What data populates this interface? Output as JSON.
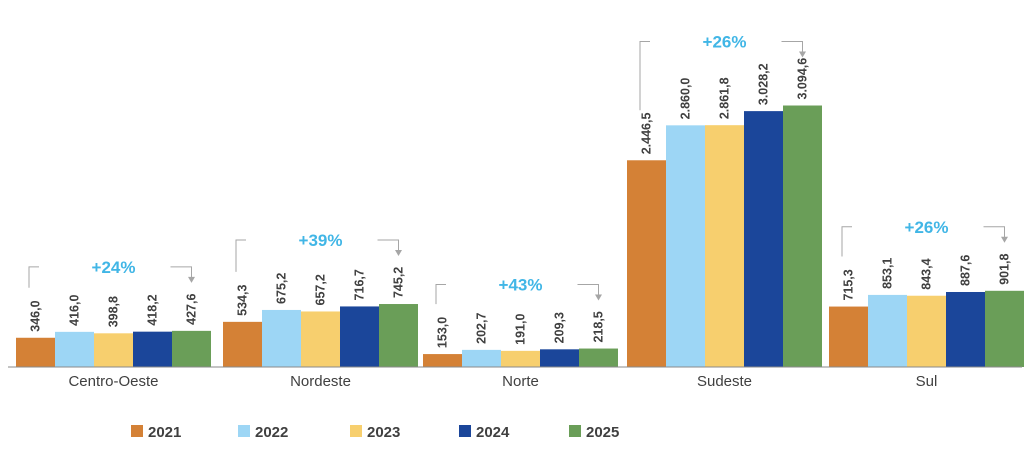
{
  "chart_data": {
    "type": "bar",
    "categories": [
      "Centro-Oeste",
      "Nordeste",
      "Norte",
      "Sudeste",
      "Sul"
    ],
    "series": [
      {
        "name": "2021",
        "color": "#D48136",
        "values": [
          346.0,
          534.3,
          153.0,
          2446.5,
          715.3
        ],
        "labels": [
          "346,0",
          "534,3",
          "153,0",
          "2.446,5",
          "715,3"
        ]
      },
      {
        "name": "2022",
        "color": "#9DD6F5",
        "values": [
          416.0,
          675.2,
          202.7,
          2860.0,
          853.1
        ],
        "labels": [
          "416,0",
          "675,2",
          "202,7",
          "2.860,0",
          "853,1"
        ]
      },
      {
        "name": "2023",
        "color": "#F7CF6E",
        "values": [
          398.8,
          657.2,
          191.0,
          2861.8,
          843.4
        ],
        "labels": [
          "398,8",
          "657,2",
          "191,0",
          "2.861,8",
          "843,4"
        ]
      },
      {
        "name": "2024",
        "color": "#1B469A",
        "values": [
          418.2,
          716.7,
          209.3,
          3028.2,
          887.6
        ],
        "labels": [
          "418,2",
          "716,7",
          "209,3",
          "3.028,2",
          "887,6"
        ]
      },
      {
        "name": "2025",
        "color": "#6A9E58",
        "values": [
          427.6,
          745.2,
          218.5,
          3094.6,
          901.8
        ],
        "labels": [
          "427,6",
          "745,2",
          "218,5",
          "3.094,6",
          "901,8"
        ]
      }
    ],
    "growth_annotations": [
      "+24%",
      "+39%",
      "+43%",
      "+26%",
      "+26%"
    ],
    "ylim": [
      0,
      3400
    ],
    "legend": "bottom-center",
    "title": "",
    "xlabel": "",
    "ylabel": ""
  }
}
